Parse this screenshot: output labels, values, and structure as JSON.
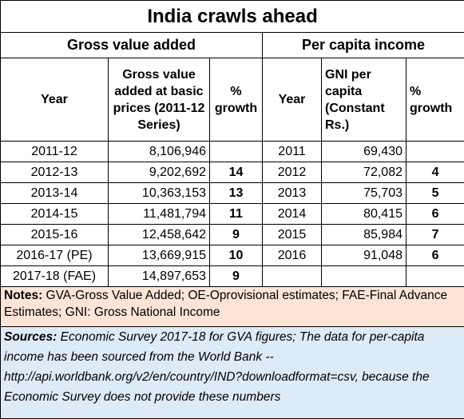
{
  "header": {
    "title": "India crawls ahead"
  },
  "gva": {
    "title": "Gross value added",
    "columns": [
      "Year",
      "Gross value added at basic prices (2011-12 Series)",
      "% growth"
    ],
    "rows": [
      [
        "2011-12",
        "8,106,946"
      ],
      [
        "2012-13",
        "9,202,692",
        14
      ],
      [
        "2013-14",
        "10,363,153",
        13
      ],
      [
        "2014-15",
        "11,481,794",
        11
      ],
      [
        "2015-16",
        "12,458,642",
        9
      ],
      [
        "2016-17 (PE)",
        "13,669,915",
        10
      ],
      [
        "2017-18 (FAE)",
        "14,897,653",
        9
      ]
    ]
  },
  "pci": {
    "title": "Per capita income",
    "columns": [
      "Year",
      "GNI per capita (Constant Rs.)",
      "% growth"
    ],
    "rows": [
      [
        "2011",
        "69,430"
      ],
      [
        "2012",
        "72,082",
        4
      ],
      [
        "2013",
        "75,703",
        5
      ],
      [
        "2014",
        "80,415",
        6
      ],
      [
        "2015",
        "85,984",
        7
      ],
      [
        "2016",
        "91,048",
        6
      ]
    ]
  },
  "notes": {
    "label": "Notes:",
    "text": "GVA-Gross Value Added; OE-Oprovisional estimates; FAE-Final Advance Estimates; GNI: Gross National Income"
  },
  "sources": {
    "label": "Sources:",
    "text": "Economic Survey 2017-18 for GVA figures; The data for per-capita income has been sourced from the World Bank -- http://api.worldbank.org/v2/en/country/IND?downloadformat=csv, because the Economic Survey does not provide these numbers"
  }
}
